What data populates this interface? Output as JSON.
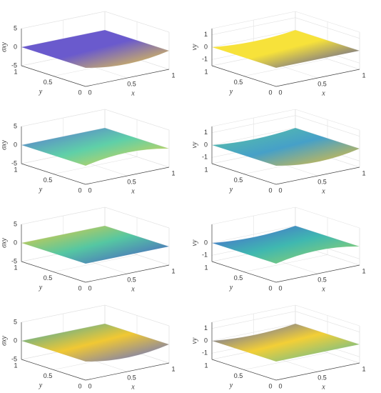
{
  "chart_data": [
    {
      "type": "surface",
      "zlabel": "σxy",
      "xlabel": "x",
      "ylabel": "y",
      "xlim": [
        0,
        1
      ],
      "ylim": [
        0,
        1
      ],
      "zlim": [
        -5,
        5
      ],
      "xticks": [
        0,
        0.5,
        1
      ],
      "yticks": [
        0,
        0.5,
        1
      ],
      "zticks": [
        -5,
        0,
        5
      ]
    },
    {
      "type": "surface",
      "zlabel": "vy",
      "xlabel": "x",
      "ylabel": "y",
      "xlim": [
        0,
        1
      ],
      "ylim": [
        0,
        1
      ],
      "zlim": [
        -1.5,
        1.5
      ],
      "xticks": [
        0,
        0.5,
        1
      ],
      "yticks": [
        0,
        0.5,
        1
      ],
      "zticks": [
        -1,
        0,
        1
      ]
    },
    {
      "type": "surface",
      "zlabel": "σxy",
      "xlabel": "x",
      "ylabel": "y",
      "xlim": [
        0,
        1
      ],
      "ylim": [
        0,
        1
      ],
      "zlim": [
        -5,
        5
      ],
      "xticks": [
        0,
        0.5,
        1
      ],
      "yticks": [
        0,
        0.5,
        1
      ],
      "zticks": [
        -5,
        0,
        5
      ]
    },
    {
      "type": "surface",
      "zlabel": "vy",
      "xlabel": "x",
      "ylabel": "y",
      "xlim": [
        0,
        1
      ],
      "ylim": [
        0,
        1
      ],
      "zlim": [
        -1.5,
        1.5
      ],
      "xticks": [
        0,
        0.5,
        1
      ],
      "yticks": [
        0,
        0.5,
        1
      ],
      "zticks": [
        -1,
        0,
        1
      ]
    },
    {
      "type": "surface",
      "zlabel": "σxy",
      "xlabel": "x",
      "ylabel": "y",
      "xlim": [
        0,
        1
      ],
      "ylim": [
        0,
        1
      ],
      "zlim": [
        -5,
        5
      ],
      "xticks": [
        0,
        0.5,
        1
      ],
      "yticks": [
        0,
        0.5,
        1
      ],
      "zticks": [
        -5,
        0,
        5
      ]
    },
    {
      "type": "surface",
      "zlabel": "vy",
      "xlabel": "x",
      "ylabel": "y",
      "xlim": [
        0,
        1
      ],
      "ylim": [
        0,
        1
      ],
      "zlim": [
        -1.5,
        1.5
      ],
      "xticks": [
        0,
        0.5,
        1
      ],
      "yticks": [
        0,
        0.5,
        1
      ],
      "zticks": [
        -1,
        0
      ]
    },
    {
      "type": "surface",
      "zlabel": "σxy",
      "xlabel": "x",
      "ylabel": "y",
      "xlim": [
        0,
        1
      ],
      "ylim": [
        0,
        1
      ],
      "zlim": [
        -5,
        5
      ],
      "xticks": [
        0,
        0.5,
        1
      ],
      "yticks": [
        0,
        0.5,
        1
      ],
      "zticks": [
        -5,
        0,
        5
      ]
    },
    {
      "type": "surface",
      "zlabel": "vy",
      "xlabel": "x",
      "ylabel": "y",
      "xlim": [
        0,
        1
      ],
      "ylim": [
        0,
        1
      ],
      "zlim": [
        -1.5,
        1.5
      ],
      "xticks": [
        0,
        0.5,
        1
      ],
      "yticks": [
        0,
        0.5,
        1
      ],
      "zticks": [
        -1,
        0,
        1
      ]
    }
  ]
}
